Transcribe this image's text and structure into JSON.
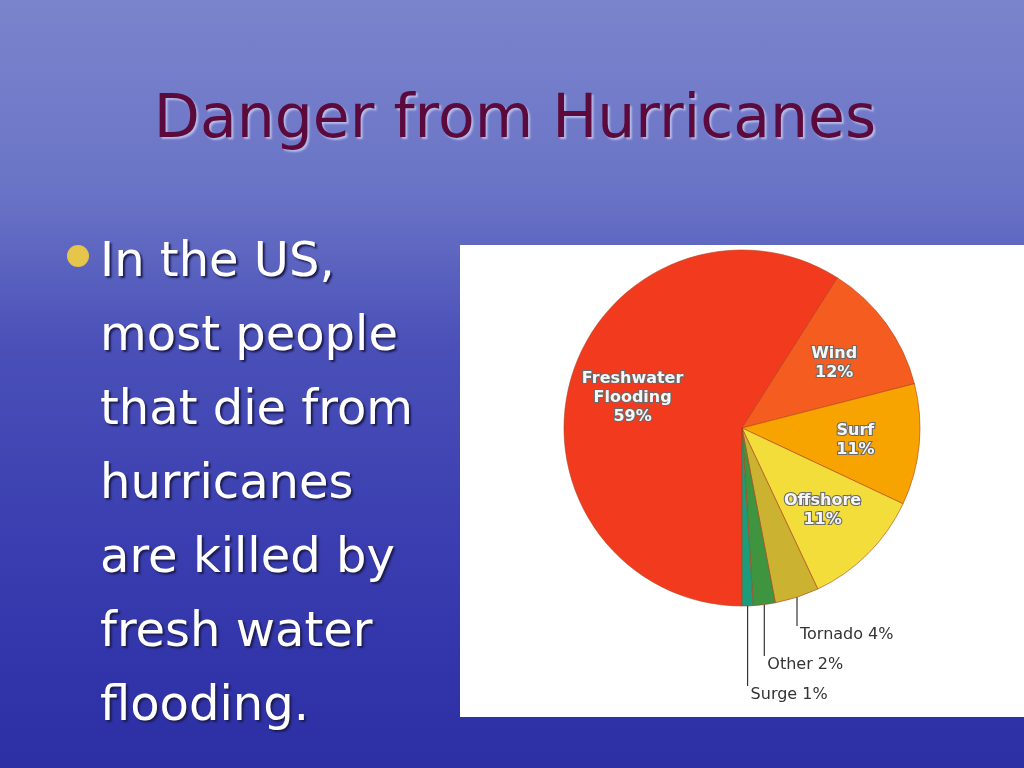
{
  "chart_data": {
    "type": "pie",
    "title": "Danger from Hurricanes",
    "categories": [
      "Freshwater Flooding",
      "Wind",
      "Surf",
      "Offshore",
      "Tornado",
      "Other",
      "Surge"
    ],
    "values": [
      59,
      12,
      11,
      11,
      4,
      2,
      1
    ],
    "colors": [
      "#f23a1e",
      "#f55c1f",
      "#f8a400",
      "#f2dd3a",
      "#cbb230",
      "#3f9440",
      "#1b9c7a"
    ],
    "value_labels": [
      "59%",
      "12%",
      "11%",
      "11%",
      "4%",
      "2%",
      "1%"
    ],
    "annotations": [
      "In the US, most people that die from hurricanes are killed by fresh water flooding."
    ]
  }
}
